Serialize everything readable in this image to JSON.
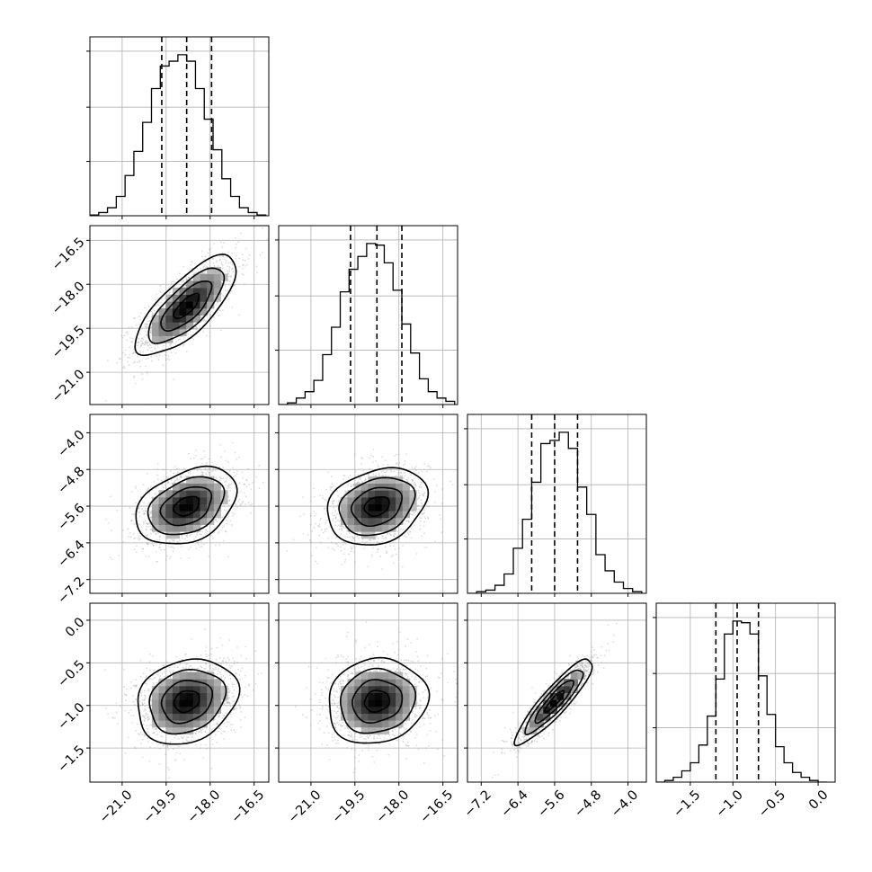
{
  "chart_data": {
    "type": "corner",
    "grid": true,
    "parameters": [
      {
        "name": "",
        "ticks": [
          "−21.0",
          "−19.5",
          "−18.0",
          "−16.5"
        ],
        "tick_values": [
          -21.0,
          -19.5,
          -18.0,
          -16.5
        ],
        "range": [
          -22.1,
          -16.0
        ],
        "quantiles": [
          -19.65,
          -18.8,
          -17.95
        ]
      },
      {
        "name": "",
        "ticks": [
          "−21.0",
          "−19.5",
          "−18.0",
          "−16.5"
        ],
        "tick_values": [
          -21.0,
          -19.5,
          -18.0,
          -16.5
        ],
        "range": [
          -22.1,
          -16.0
        ],
        "quantiles": [
          -19.65,
          -18.75,
          -17.9
        ]
      },
      {
        "name": "",
        "ticks": [
          "−7.2",
          "−6.4",
          "−5.6",
          "−4.8",
          "−4.0"
        ],
        "tick_values": [
          -7.2,
          -6.4,
          -5.6,
          -4.8,
          -4.0
        ],
        "range": [
          -7.5,
          -3.6
        ],
        "quantiles": [
          -6.1,
          -5.6,
          -5.1
        ]
      },
      {
        "name": "",
        "ticks": [
          "−1.5",
          "−1.0",
          "−0.5",
          "0.0"
        ],
        "tick_values": [
          -1.5,
          -1.0,
          -0.5,
          0.0
        ],
        "range": [
          -1.9,
          0.2
        ],
        "quantiles": [
          -1.2,
          -0.95,
          -0.7
        ]
      }
    ],
    "marginals": [
      {
        "bins": [
          -22.1,
          -21.8,
          -21.5,
          -21.2,
          -20.9,
          -20.6,
          -20.3,
          -20.0,
          -19.7,
          -19.4,
          -19.1,
          -18.8,
          -18.5,
          -18.2,
          -17.9,
          -17.6,
          -17.3,
          -17.0,
          -16.7,
          -16.4,
          -16.1
        ],
        "counts": [
          0.005,
          0.02,
          0.05,
          0.12,
          0.25,
          0.4,
          0.58,
          0.79,
          0.93,
          0.96,
          1.0,
          0.96,
          0.79,
          0.6,
          0.41,
          0.23,
          0.12,
          0.05,
          0.02,
          0.005
        ]
      },
      {
        "bins": [
          -22.1,
          -21.8,
          -21.5,
          -21.2,
          -20.9,
          -20.6,
          -20.3,
          -20.0,
          -19.7,
          -19.4,
          -19.1,
          -18.8,
          -18.5,
          -18.2,
          -17.9,
          -17.6,
          -17.3,
          -17.0,
          -16.7,
          -16.4,
          -16.1
        ],
        "counts": [
          0.0,
          0.01,
          0.04,
          0.08,
          0.15,
          0.31,
          0.48,
          0.7,
          0.84,
          0.92,
          1.0,
          0.99,
          0.88,
          0.71,
          0.5,
          0.32,
          0.16,
          0.08,
          0.04,
          0.02
        ]
      },
      {
        "bins": [
          -7.5,
          -7.3,
          -7.1,
          -6.9,
          -6.7,
          -6.5,
          -6.3,
          -6.1,
          -5.9,
          -5.7,
          -5.5,
          -5.3,
          -5.1,
          -4.9,
          -4.7,
          -4.5,
          -4.3,
          -4.1,
          -3.9,
          -3.7
        ],
        "counts": [
          0.0,
          0.01,
          0.02,
          0.05,
          0.12,
          0.28,
          0.46,
          0.69,
          0.93,
          0.95,
          1.0,
          0.9,
          0.66,
          0.49,
          0.24,
          0.14,
          0.07,
          0.03,
          0.01
        ]
      },
      {
        "bins": [
          -1.9,
          -1.8,
          -1.7,
          -1.6,
          -1.5,
          -1.4,
          -1.3,
          -1.2,
          -1.1,
          -1.0,
          -0.9,
          -0.8,
          -0.7,
          -0.6,
          -0.5,
          -0.4,
          -0.3,
          -0.2,
          -0.1,
          0.0,
          0.1
        ],
        "counts": [
          0.0,
          0.01,
          0.03,
          0.07,
          0.12,
          0.23,
          0.41,
          0.64,
          0.92,
          1.0,
          0.99,
          0.92,
          0.66,
          0.42,
          0.22,
          0.12,
          0.06,
          0.03,
          0.01,
          0.0
        ]
      }
    ],
    "joint": [
      {
        "x": 0,
        "y": 1,
        "mean": [
          -18.8,
          -18.75
        ],
        "std": [
          0.86,
          0.85
        ],
        "corr": 0.75
      },
      {
        "x": 0,
        "y": 2,
        "mean": [
          -18.8,
          -5.6
        ],
        "std": [
          0.86,
          0.42
        ],
        "corr": 0.35
      },
      {
        "x": 1,
        "y": 2,
        "mean": [
          -18.75,
          -5.6
        ],
        "std": [
          0.85,
          0.42
        ],
        "corr": 0.25
      },
      {
        "x": 0,
        "y": 3,
        "mean": [
          -18.8,
          -0.95
        ],
        "std": [
          0.86,
          0.25
        ],
        "corr": 0.2
      },
      {
        "x": 1,
        "y": 3,
        "mean": [
          -18.75,
          -0.95
        ],
        "std": [
          0.85,
          0.25
        ],
        "corr": 0.1
      },
      {
        "x": 2,
        "y": 3,
        "mean": [
          -5.6,
          -0.95
        ],
        "std": [
          0.42,
          0.25
        ],
        "corr": 0.9
      }
    ],
    "contour_levels_sigma": [
      0.5,
      1.0,
      1.5,
      2.0
    ]
  }
}
